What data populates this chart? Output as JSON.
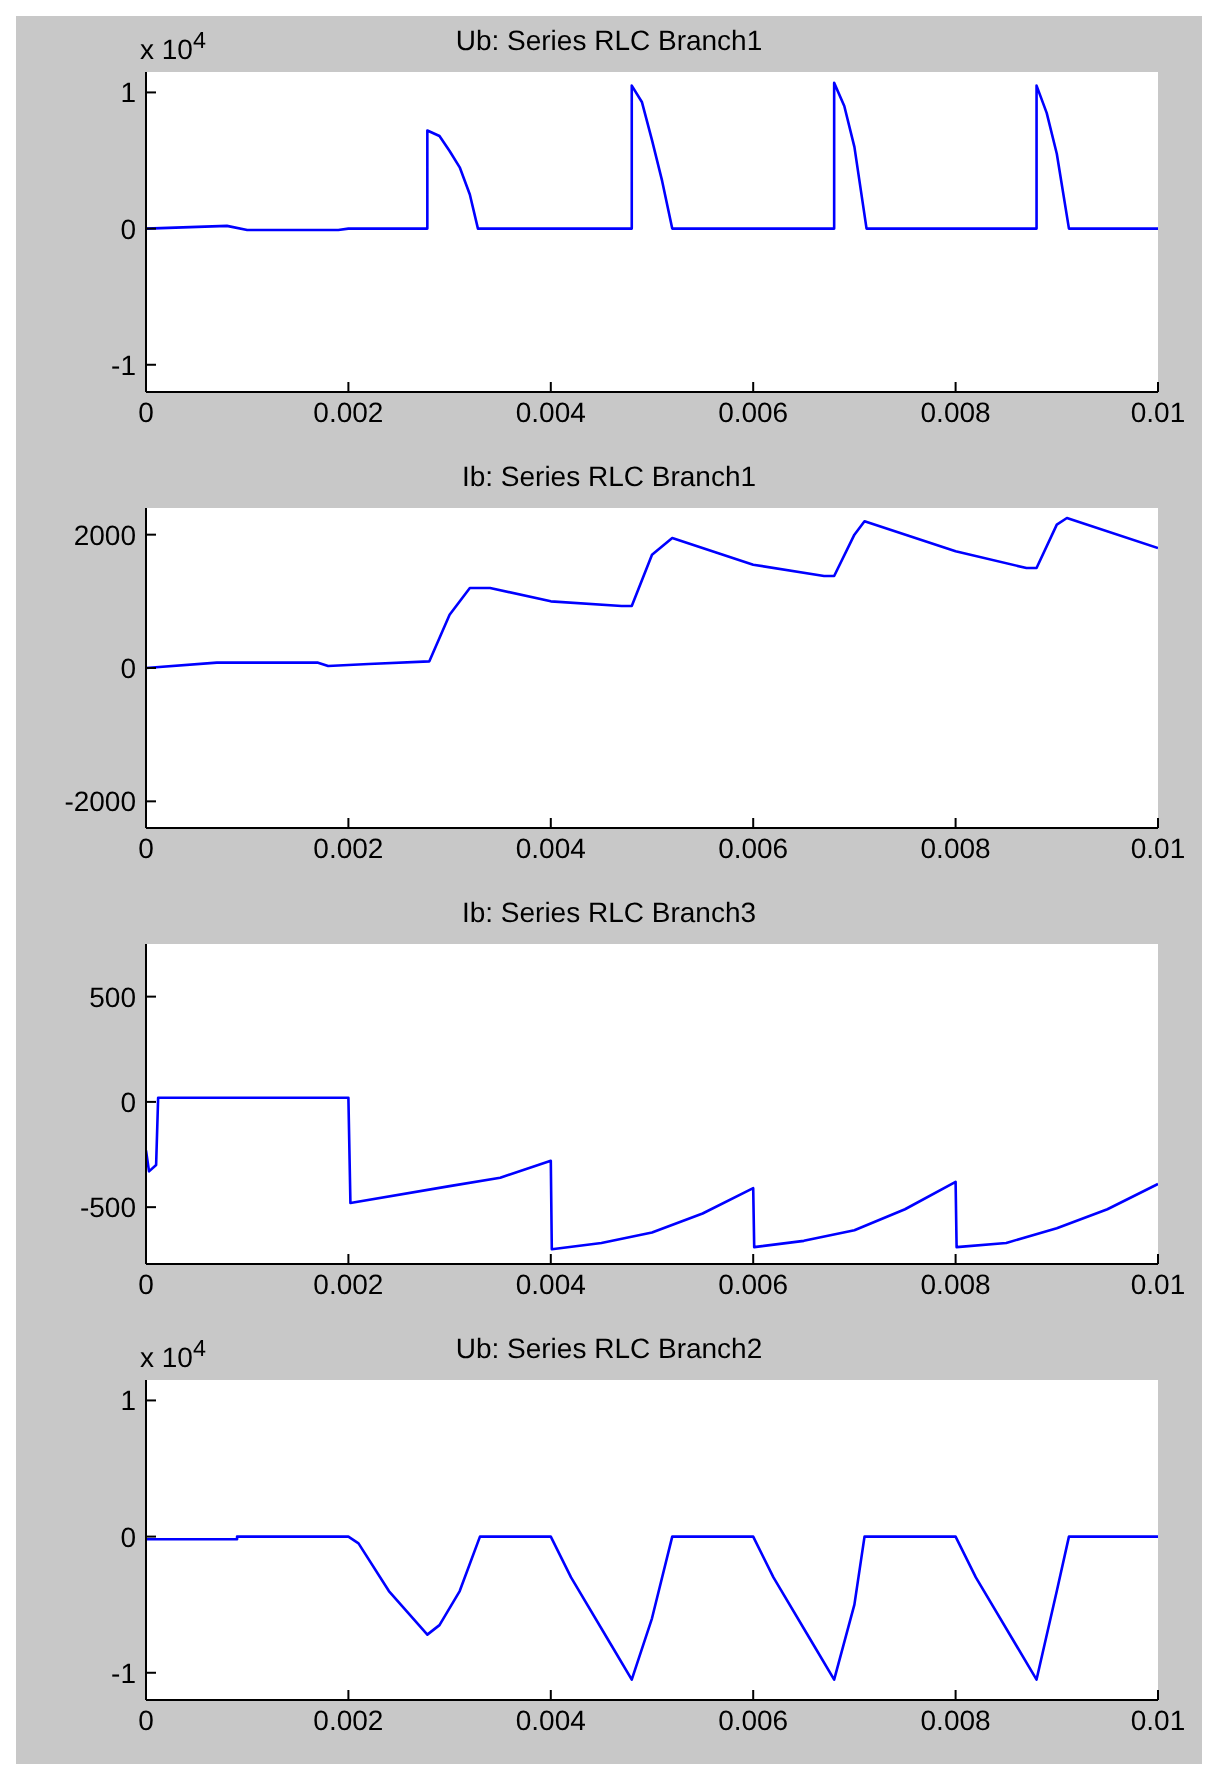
{
  "chart_data": [
    {
      "type": "line",
      "title": "Ub: Series RLC Branch1",
      "annotations": [
        "x 10$^{4}$"
      ],
      "xlim": [
        0,
        0.01
      ],
      "xticks": [
        0,
        0.002,
        0.004,
        0.006,
        0.008,
        0.01
      ],
      "ylim": [
        -1.2,
        1.15
      ],
      "yticks": [
        -1,
        0,
        1
      ],
      "marker": "none",
      "line_style": "solid",
      "series": [
        {
          "color": "#0000ff",
          "x": [
            0,
            0.0008,
            0.001,
            0.0019,
            0.002,
            0.00278,
            0.00278,
            0.0029,
            0.003,
            0.0031,
            0.0032,
            0.00328,
            0.004,
            0.0048,
            0.0048,
            0.0049,
            0.005,
            0.0051,
            0.0052,
            0.006,
            0.0068,
            0.0068,
            0.0069,
            0.007,
            0.00712,
            0.008,
            0.0088,
            0.0088,
            0.0089,
            0.009,
            0.00912,
            0.01
          ],
          "values": [
            0,
            0.02,
            -0.01,
            -0.01,
            0,
            0,
            0.72,
            0.68,
            0.57,
            0.45,
            0.25,
            0,
            0,
            0,
            1.05,
            0.93,
            0.65,
            0.35,
            0,
            0,
            0,
            1.07,
            0.9,
            0.6,
            0,
            0,
            0,
            1.05,
            0.85,
            0.55,
            0,
            0
          ]
        }
      ]
    },
    {
      "type": "line",
      "title": "Ib: Series RLC Branch1",
      "xlim": [
        0,
        0.01
      ],
      "xticks": [
        0,
        0.002,
        0.004,
        0.006,
        0.008,
        0.01
      ],
      "ylim": [
        -2400,
        2400
      ],
      "yticks": [
        -2000,
        0,
        2000
      ],
      "marker": "none",
      "line_style": "solid",
      "series": [
        {
          "color": "#0000ff",
          "x": [
            0,
            0.0007,
            0.0017,
            0.0018,
            0.0022,
            0.0028,
            0.003,
            0.0032,
            0.0034,
            0.004,
            0.0047,
            0.0048,
            0.005,
            0.0052,
            0.006,
            0.0067,
            0.0068,
            0.007,
            0.0071,
            0.008,
            0.0087,
            0.0088,
            0.009,
            0.0091,
            0.01
          ],
          "values": [
            0,
            80,
            80,
            30,
            60,
            100,
            800,
            1200,
            1200,
            1000,
            930,
            930,
            1700,
            1950,
            1550,
            1380,
            1380,
            2000,
            2200,
            1750,
            1500,
            1500,
            2150,
            2250,
            1800
          ]
        }
      ]
    },
    {
      "type": "line",
      "title": "Ib: Series RLC Branch3",
      "xlim": [
        0,
        0.01
      ],
      "xticks": [
        0,
        0.002,
        0.004,
        0.006,
        0.008,
        0.01
      ],
      "ylim": [
        -770,
        750
      ],
      "yticks": [
        -500,
        0,
        500
      ],
      "marker": "none",
      "line_style": "solid",
      "series": [
        {
          "color": "#0000ff",
          "x": [
            0,
            3e-05,
            0.0001,
            0.00012,
            0.002,
            0.00202,
            0.003,
            0.0035,
            0.004,
            0.00401,
            0.0045,
            0.005,
            0.0055,
            0.006,
            0.00601,
            0.0065,
            0.007,
            0.0075,
            0.008,
            0.00801,
            0.0085,
            0.009,
            0.0095,
            0.01
          ],
          "values": [
            -230,
            -330,
            -300,
            20,
            20,
            -480,
            -400,
            -360,
            -280,
            -700,
            -670,
            -620,
            -530,
            -410,
            -690,
            -660,
            -610,
            -510,
            -380,
            -690,
            -670,
            -600,
            -510,
            -390
          ]
        }
      ]
    },
    {
      "type": "line",
      "title": "Ub: Series RLC Branch2",
      "annotations": [
        "x 10$^{4}$"
      ],
      "xlim": [
        0,
        0.01
      ],
      "xticks": [
        0,
        0.002,
        0.004,
        0.006,
        0.008,
        0.01
      ],
      "ylim": [
        -1.2,
        1.15
      ],
      "yticks": [
        -1,
        0,
        1
      ],
      "marker": "none",
      "line_style": "solid",
      "series": [
        {
          "color": "#0000ff",
          "x": [
            0,
            0.0009,
            0.0009,
            0.002,
            0.0021,
            0.0024,
            0.00278,
            0.0029,
            0.0031,
            0.0033,
            0.004,
            0.0042,
            0.0046,
            0.0048,
            0.005,
            0.0052,
            0.006,
            0.0062,
            0.0066,
            0.0068,
            0.007,
            0.0071,
            0.008,
            0.0082,
            0.0086,
            0.0088,
            0.009,
            0.00912,
            0.01
          ],
          "values": [
            -0.02,
            -0.02,
            0,
            0,
            -0.05,
            -0.4,
            -0.72,
            -0.65,
            -0.4,
            0,
            0,
            -0.3,
            -0.8,
            -1.05,
            -0.6,
            0,
            0,
            -0.3,
            -0.8,
            -1.05,
            -0.5,
            0,
            0,
            -0.3,
            -0.8,
            -1.05,
            -0.4,
            0,
            0
          ]
        }
      ]
    }
  ]
}
